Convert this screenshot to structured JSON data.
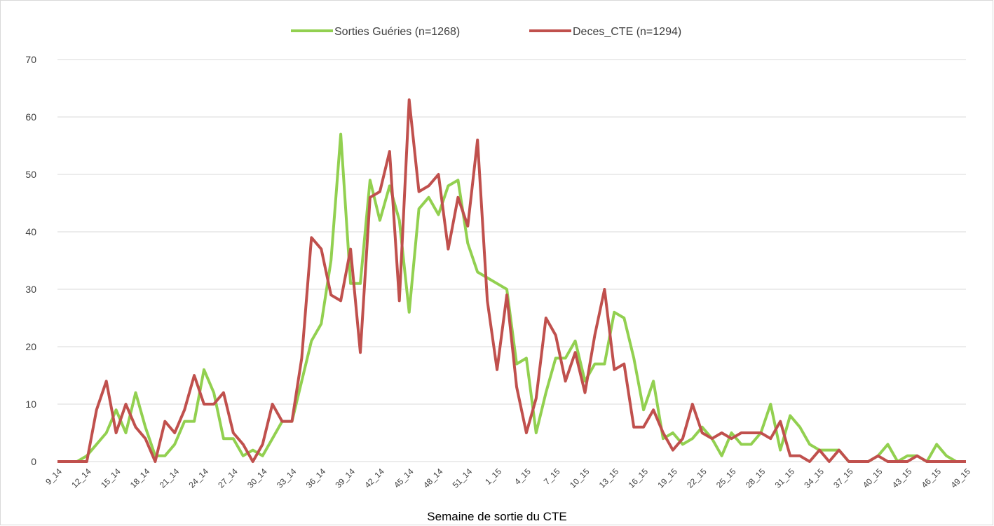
{
  "chart_data": {
    "type": "line",
    "x_label": "Semaine de sortie du CTE",
    "categories": [
      "9_14",
      null,
      null,
      "12_14",
      null,
      null,
      "15_14",
      null,
      null,
      "18_14",
      null,
      null,
      "21_14",
      null,
      null,
      "24_14",
      null,
      null,
      "27_14",
      null,
      null,
      "30_14",
      null,
      null,
      "33_14",
      null,
      null,
      "36_14",
      null,
      null,
      "39_14",
      null,
      null,
      "42_14",
      null,
      null,
      "45_14",
      null,
      null,
      "48_14",
      null,
      null,
      "51_14",
      null,
      null,
      "1_15",
      null,
      null,
      "4_15",
      null,
      null,
      "7_15",
      null,
      null,
      "10_15",
      null,
      null,
      "13_15",
      null,
      null,
      "16_15",
      null,
      null,
      "19_15",
      null,
      null,
      "22_15",
      null,
      null,
      "25_15",
      null,
      null,
      "28_15",
      null,
      null,
      "31_15",
      null,
      null,
      "34_15",
      null,
      null,
      "37_15",
      null,
      null,
      "40_15",
      null,
      null,
      "43_15",
      null,
      null,
      "46_15",
      null,
      null,
      "49_15"
    ],
    "series": [
      {
        "name": "Sorties Guéries (n=1268)",
        "color": "#92d050",
        "values": [
          0,
          0,
          0,
          1,
          3,
          5,
          9,
          5,
          12,
          6,
          1,
          1,
          3,
          7,
          7,
          16,
          12,
          4,
          4,
          1,
          2,
          1,
          4,
          7,
          7,
          14,
          21,
          24,
          35,
          57,
          31,
          31,
          49,
          42,
          48,
          42,
          26,
          44,
          46,
          43,
          48,
          49,
          38,
          33,
          32,
          31,
          30,
          17,
          18,
          5,
          12,
          18,
          18,
          21,
          14,
          17,
          17,
          26,
          25,
          18,
          9,
          14,
          4,
          5,
          3,
          4,
          6,
          4,
          1,
          5,
          3,
          3,
          5,
          10,
          2,
          8,
          6,
          3,
          2,
          2,
          2,
          0,
          0,
          0,
          1,
          3,
          0,
          1,
          1,
          0,
          3,
          1,
          0,
          0
        ]
      },
      {
        "name": "Deces_CTE (n=1294)",
        "color": "#c0504d",
        "values": [
          0,
          0,
          0,
          0,
          9,
          14,
          5,
          10,
          6,
          4,
          0,
          7,
          5,
          9,
          15,
          10,
          10,
          12,
          5,
          3,
          0,
          3,
          10,
          7,
          7,
          18,
          39,
          37,
          29,
          28,
          37,
          19,
          46,
          47,
          54,
          28,
          63,
          47,
          48,
          50,
          37,
          46,
          41,
          56,
          28,
          16,
          29,
          13,
          5,
          11,
          25,
          22,
          14,
          19,
          12,
          22,
          30,
          16,
          17,
          6,
          6,
          9,
          5,
          2,
          4,
          10,
          5,
          4,
          5,
          4,
          5,
          5,
          5,
          4,
          7,
          1,
          1,
          0,
          2,
          0,
          2,
          0,
          0,
          0,
          1,
          0,
          0,
          0,
          1,
          0,
          0,
          0,
          0,
          0
        ]
      }
    ],
    "ylim": [
      0,
      70
    ],
    "yticks": [
      0,
      10,
      20,
      30,
      40,
      50,
      60,
      70
    ],
    "grid": true,
    "legend": "top"
  }
}
